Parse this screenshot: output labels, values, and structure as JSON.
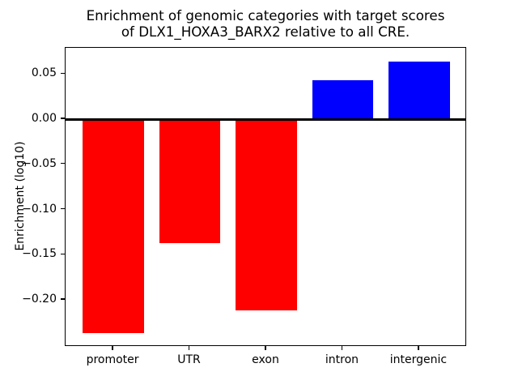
{
  "figure": {
    "background": "#ffffff",
    "title_line1": "Enrichment of genomic categories with target scores",
    "title_line2": "of DLX1_HOXA3_BARX2 relative to all CRE."
  },
  "chart_data": {
    "type": "bar",
    "title": "Enrichment of genomic categories with target scores\nof DLX1_HOXA3_BARX2 relative to all CRE.",
    "xlabel": "",
    "ylabel": "Enrichment (log10)",
    "categories": [
      "promoter",
      "UTR",
      "exon",
      "intron",
      "intergenic"
    ],
    "values": [
      -0.237,
      -0.137,
      -0.212,
      0.043,
      0.064
    ],
    "bar_colors": [
      "#ff0000",
      "#ff0000",
      "#ff0000",
      "#0000ff",
      "#0000ff"
    ],
    "negative_color": "#ff0000",
    "positive_color": "#0000ff",
    "baseline": 0,
    "baseline_line_color": "#000000",
    "ylim": [
      -0.252,
      0.079
    ],
    "yticks": [
      0.05,
      0.0,
      -0.05,
      -0.1,
      -0.15,
      -0.2
    ],
    "ytick_labels": [
      "0.05",
      "0.00",
      "−0.05",
      "−0.10",
      "−0.15",
      "−0.20"
    ],
    "grid": false,
    "legend": null,
    "axis_color": "#000000"
  }
}
